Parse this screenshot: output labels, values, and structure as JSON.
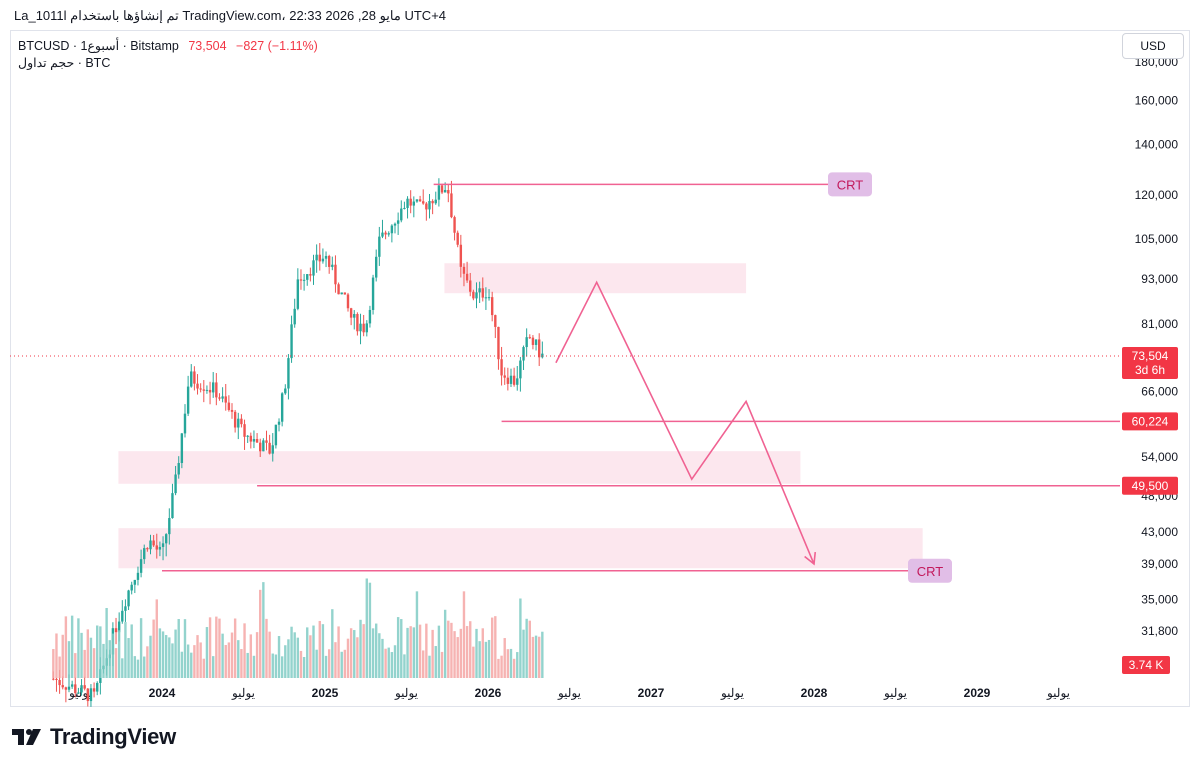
{
  "header": {
    "left": "La_1011l تم إنشاؤها باستخدام TradingView.com، 22:33 2026 ,28 مايو UTC+4",
    "right": ""
  },
  "legend": {
    "symbol": "BTCUSD · 1أسبوع · Bitstamp",
    "last": "73,504",
    "change": "−827 (−1.11%)",
    "volume_line": "حجم تداول · BTC"
  },
  "currency_button": "USD",
  "brand": {
    "name": "TradingView"
  },
  "colors": {
    "up": "#26a69a",
    "down": "#ef5350",
    "drawing": "#f06292",
    "zone": "#fce4ec",
    "crt_bg": "#e1bee7",
    "price_label": "#f23645"
  },
  "chart_data": {
    "type": "candlestick",
    "symbol": "BTCUSD",
    "timeframe": "1W",
    "y_axis": {
      "scale": "log",
      "ticks": [
        31800,
        35000,
        39000,
        43000,
        48000,
        54000,
        66000,
        81000,
        93000,
        105000,
        120000,
        140000,
        160000,
        180000
      ]
    },
    "x_axis": {
      "ticks": [
        {
          "label": "يوليو",
          "date": "2023-07"
        },
        {
          "label": "2024",
          "date": "2024-01"
        },
        {
          "label": "يوليو",
          "date": "2024-07"
        },
        {
          "label": "2025",
          "date": "2025-01"
        },
        {
          "label": "يوليو",
          "date": "2025-07"
        },
        {
          "label": "2026",
          "date": "2026-01"
        },
        {
          "label": "يوليو",
          "date": "2026-07"
        },
        {
          "label": "2027",
          "date": "2027-01"
        },
        {
          "label": "يوليو",
          "date": "2027-07"
        },
        {
          "label": "2028",
          "date": "2028-01"
        },
        {
          "label": "يوليو",
          "date": "2028-07"
        },
        {
          "label": "2029",
          "date": "2029-01"
        },
        {
          "label": "يوليو",
          "date": "2029-07"
        }
      ]
    },
    "current_price": {
      "value": 73504,
      "label": "73,504",
      "countdown": "3d 6h"
    },
    "volume_label": "3.74 K",
    "price_path": [
      {
        "date": "2023-05",
        "price": 27500
      },
      {
        "date": "2023-08",
        "price": 26000
      },
      {
        "date": "2023-10",
        "price": 34000
      },
      {
        "date": "2023-12",
        "price": 42000
      },
      {
        "date": "2024-01",
        "price": 40000
      },
      {
        "date": "2024-02",
        "price": 50000
      },
      {
        "date": "2024-03",
        "price": 69000
      },
      {
        "date": "2024-05",
        "price": 66000
      },
      {
        "date": "2024-07",
        "price": 58000
      },
      {
        "date": "2024-09",
        "price": 55000
      },
      {
        "date": "2024-10",
        "price": 66000
      },
      {
        "date": "2024-11",
        "price": 93000
      },
      {
        "date": "2025-01",
        "price": 100000
      },
      {
        "date": "2025-03",
        "price": 82000
      },
      {
        "date": "2025-04",
        "price": 80000
      },
      {
        "date": "2025-05",
        "price": 104000
      },
      {
        "date": "2025-07",
        "price": 118000
      },
      {
        "date": "2025-08",
        "price": 115000
      },
      {
        "date": "2025-10",
        "price": 124000
      },
      {
        "date": "2025-11",
        "price": 95000
      },
      {
        "date": "2025-12",
        "price": 88000
      },
      {
        "date": "2026-01",
        "price": 90000
      },
      {
        "date": "2026-02",
        "price": 70000
      },
      {
        "date": "2026-03",
        "price": 68000
      },
      {
        "date": "2026-04",
        "price": 78000
      },
      {
        "date": "2026-05",
        "price": 73504
      }
    ],
    "annotations": {
      "horizontal_lines": [
        {
          "from": "2025-09",
          "price": 124000,
          "label": "CRT"
        },
        {
          "from": "2026-02",
          "price": 60224,
          "label": "60,224"
        },
        {
          "from": "2024-08",
          "price": 49500,
          "label": "49,500"
        },
        {
          "from": "2024-01",
          "price": 38200,
          "label": "CRT"
        }
      ],
      "zones": [
        {
          "from": "2025-12",
          "to": "2027-08",
          "low": 89000,
          "high": 97500
        },
        {
          "from": "2023-12",
          "to": "2027-12",
          "low": 49800,
          "high": 55000
        },
        {
          "from": "2023-12",
          "to": "2028-09",
          "low": 38500,
          "high": 43500
        }
      ],
      "projection": [
        {
          "date": "2026-06",
          "price": 72000
        },
        {
          "date": "2026-09",
          "price": 92000
        },
        {
          "date": "2027-04",
          "price": 50500
        },
        {
          "date": "2027-08",
          "price": 64000
        },
        {
          "date": "2028-01",
          "price": 39000
        }
      ]
    }
  }
}
